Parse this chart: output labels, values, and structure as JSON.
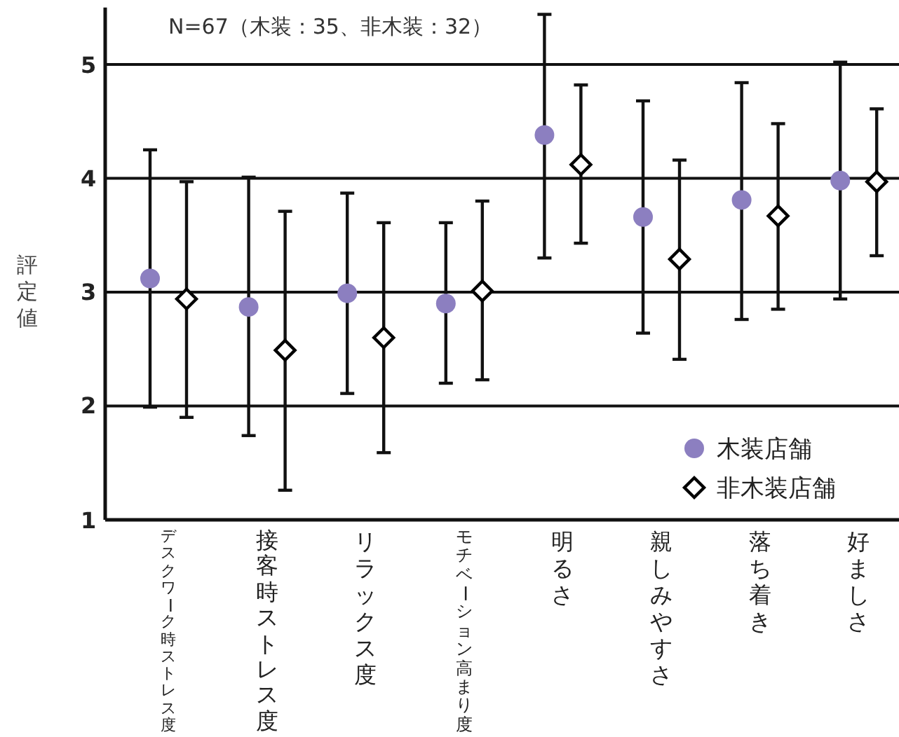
{
  "chart_data": {
    "type": "scatter",
    "title": "N=67（木装：35、非木装：32）",
    "ylabel": "評定値",
    "categories": [
      "デスクワーク時ストレス度",
      "接客時ストレス度",
      "リラックス度",
      "モチベーション高まり度",
      "明るさ",
      "親しみやすさ",
      "落ち着き",
      "好ましさ"
    ],
    "series": [
      {
        "name": "木装店舗",
        "color": "#8c7fc0",
        "marker": "circle",
        "values": [
          3.12,
          2.87,
          2.99,
          2.9,
          4.38,
          3.66,
          3.81,
          3.98
        ],
        "errors": [
          [
            1.99,
            4.25
          ],
          [
            1.74,
            4.01
          ],
          [
            2.11,
            3.87
          ],
          [
            2.2,
            3.61
          ],
          [
            3.3,
            5.44
          ],
          [
            2.64,
            4.68
          ],
          [
            2.76,
            4.84
          ],
          [
            2.94,
            5.02
          ]
        ]
      },
      {
        "name": "非木装店舗",
        "color": "#000000",
        "marker": "diamond",
        "values": [
          2.94,
          2.49,
          2.6,
          3.01,
          4.12,
          3.29,
          3.67,
          3.97
        ],
        "errors": [
          [
            1.9,
            3.97
          ],
          [
            1.26,
            3.71
          ],
          [
            1.59,
            3.61
          ],
          [
            2.23,
            3.8
          ],
          [
            3.43,
            4.82
          ],
          [
            2.41,
            4.16
          ],
          [
            2.85,
            4.48
          ],
          [
            3.32,
            4.61
          ]
        ]
      }
    ],
    "ylim": [
      1,
      5.5
    ],
    "yticks": [
      1,
      2,
      3,
      4,
      5
    ],
    "grid": "y",
    "legend": "bottom right"
  }
}
